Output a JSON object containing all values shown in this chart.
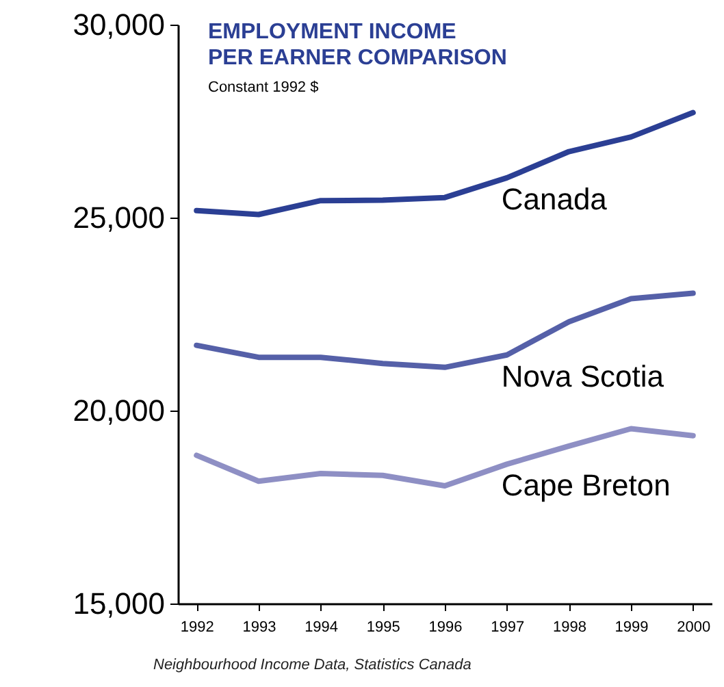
{
  "chart_data": {
    "type": "line",
    "title": "EMPLOYMENT INCOME\nPER EARNER COMPARISON",
    "subtitle": "Constant 1992 $",
    "categories": [
      "1992",
      "1993",
      "1994",
      "1995",
      "1996",
      "1997",
      "1998",
      "1999",
      "2000"
    ],
    "series": [
      {
        "name": "Canada",
        "color": "#2b3f94",
        "values": [
          25180,
          25080,
          25440,
          25450,
          25520,
          26030,
          26710,
          27090,
          27720
        ]
      },
      {
        "name": "Nova Scotia",
        "color": "#5560a8",
        "values": [
          21690,
          21380,
          21380,
          21220,
          21120,
          21440,
          22300,
          22900,
          23040
        ]
      },
      {
        "name": "Cape Breton",
        "color": "#8e8fc4",
        "values": [
          18840,
          18170,
          18370,
          18320,
          18050,
          18610,
          19080,
          19530,
          19350
        ]
      }
    ],
    "ylim": [
      15000,
      30000
    ],
    "yticks": [
      {
        "value": 15000,
        "label": "15,000"
      },
      {
        "value": 20000,
        "label": "20,000"
      },
      {
        "value": 25000,
        "label": "25,000"
      },
      {
        "value": 30000,
        "label": "30,000"
      }
    ],
    "grid": false,
    "legend": false,
    "marker": "none",
    "line_style": "solid",
    "annotations": [
      "Neighbourhood Income Data, Statistics Canada"
    ]
  }
}
